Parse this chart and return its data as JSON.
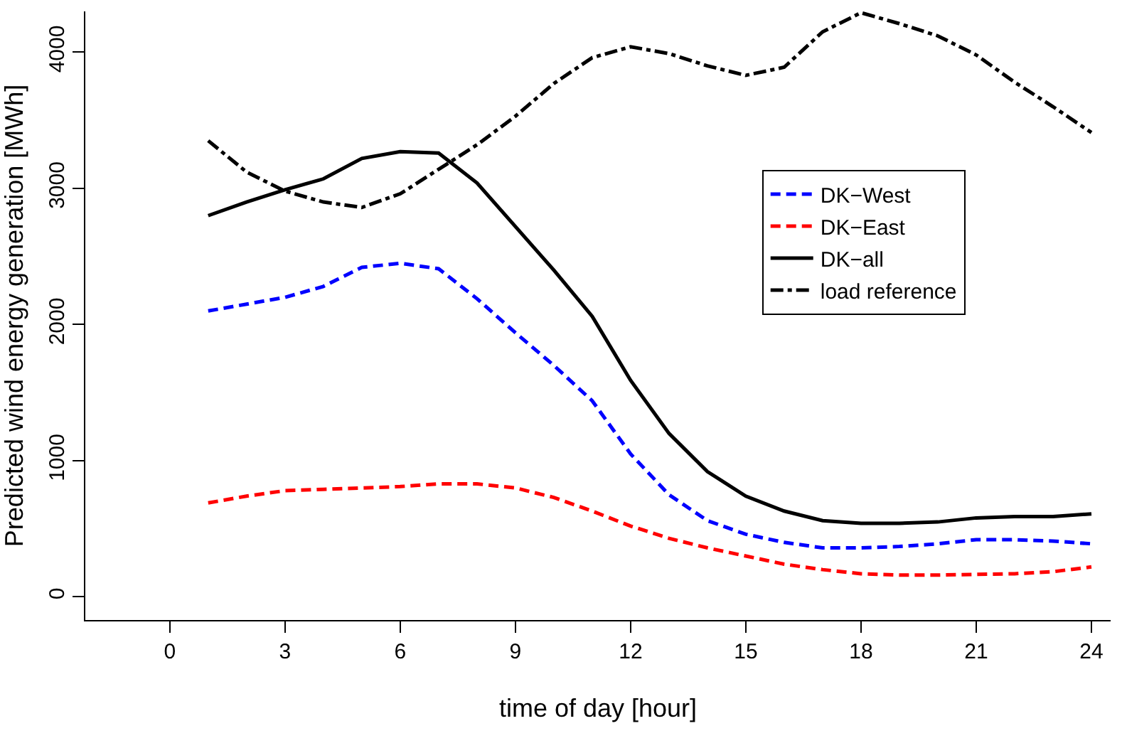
{
  "chart_data": {
    "type": "line",
    "xlabel": "time of day [hour]",
    "ylabel": "Predicted wind energy generation [MWh]",
    "x": [
      1,
      2,
      3,
      4,
      5,
      6,
      7,
      8,
      9,
      10,
      11,
      12,
      13,
      14,
      15,
      16,
      17,
      18,
      19,
      20,
      21,
      22,
      23,
      24
    ],
    "series": [
      {
        "name": "DK−West",
        "color": "#0000ff",
        "line_style": "dashed",
        "values": [
          2100,
          2150,
          2200,
          2280,
          2420,
          2450,
          2410,
          2190,
          1940,
          1700,
          1440,
          1050,
          750,
          560,
          460,
          400,
          360,
          360,
          370,
          390,
          420,
          420,
          410,
          390
        ]
      },
      {
        "name": "DK−East",
        "color": "#ff0000",
        "line_style": "dashed",
        "values": [
          690,
          740,
          780,
          790,
          800,
          810,
          830,
          830,
          800,
          730,
          630,
          520,
          430,
          360,
          300,
          240,
          200,
          170,
          160,
          160,
          165,
          170,
          185,
          220
        ]
      },
      {
        "name": "DK−all",
        "color": "#000000",
        "line_style": "solid",
        "values": [
          2800,
          2900,
          2990,
          3070,
          3220,
          3270,
          3260,
          3040,
          2720,
          2400,
          2060,
          1590,
          1200,
          920,
          740,
          630,
          560,
          540,
          540,
          550,
          580,
          590,
          590,
          610
        ]
      },
      {
        "name": "load reference",
        "color": "#000000",
        "line_style": "dashdot",
        "values": [
          3350,
          3120,
          2980,
          2900,
          2860,
          2960,
          3140,
          3320,
          3530,
          3770,
          3960,
          4040,
          3990,
          3900,
          3830,
          3890,
          4150,
          4290,
          4210,
          4120,
          3980,
          3780,
          3600,
          3410
        ]
      }
    ],
    "xlim": [
      -2.2,
      24.5
    ],
    "xticks": [
      0,
      3,
      6,
      9,
      12,
      15,
      18,
      21,
      24
    ],
    "ylim": [
      -170,
      4300
    ],
    "yticks": [
      0,
      1000,
      2000,
      3000,
      4000
    ],
    "grid": false,
    "legend": "right",
    "marker": "none"
  }
}
